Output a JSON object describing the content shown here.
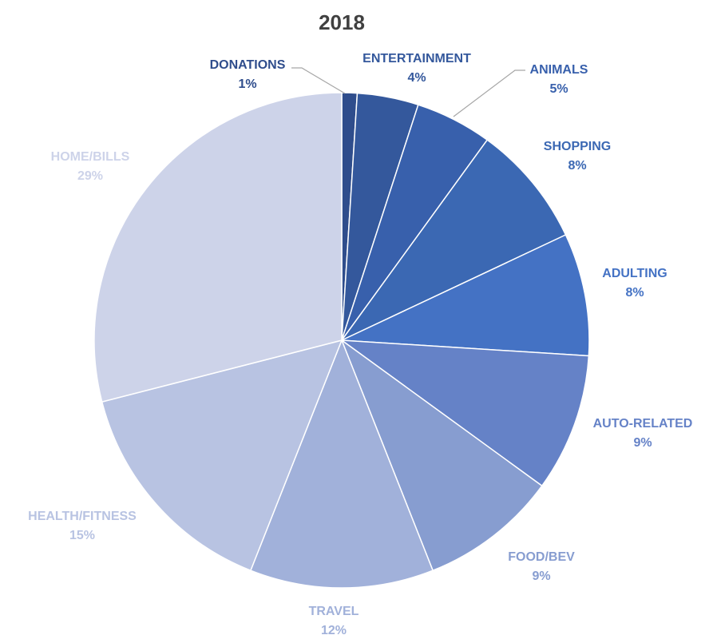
{
  "chart_data": {
    "type": "pie",
    "title": "2018",
    "slices": [
      {
        "label": "DONATIONS",
        "value": 1,
        "value_label": "1%",
        "color": "#2f4d8c"
      },
      {
        "label": "ENTERTAINMENT",
        "value": 4,
        "value_label": "4%",
        "color": "#34589c"
      },
      {
        "label": "ANIMALS",
        "value": 5,
        "value_label": "5%",
        "color": "#3860ac"
      },
      {
        "label": "SHOPPING",
        "value": 8,
        "value_label": "8%",
        "color": "#3b68b3"
      },
      {
        "label": "ADULTING",
        "value": 8,
        "value_label": "8%",
        "color": "#4472c4"
      },
      {
        "label": "AUTO-RELATED",
        "value": 9,
        "value_label": "9%",
        "color": "#6582c7"
      },
      {
        "label": "FOOD/BEV",
        "value": 9,
        "value_label": "9%",
        "color": "#879dd0"
      },
      {
        "label": "TRAVEL",
        "value": 12,
        "value_label": "12%",
        "color": "#a1b1da"
      },
      {
        "label": "HEALTH/FITNESS",
        "value": 15,
        "value_label": "15%",
        "color": "#b8c3e2"
      },
      {
        "label": "HOME/BILLS",
        "value": 29,
        "value_label": "29%",
        "color": "#cdd3e9"
      }
    ]
  }
}
